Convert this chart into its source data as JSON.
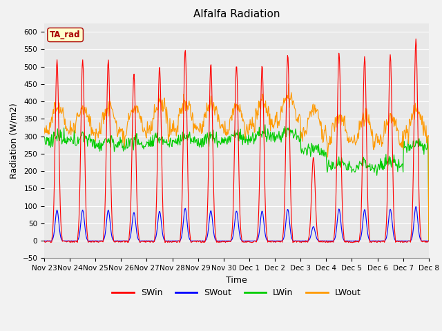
{
  "title": "Alfalfa Radiation",
  "xlabel": "Time",
  "ylabel": "Radiation (W/m2)",
  "ylim": [
    -50,
    625
  ],
  "n_days": 15,
  "colors": {
    "SWin": "#ff0000",
    "SWout": "#0000ff",
    "LWin": "#00cc00",
    "LWout": "#ff9900"
  },
  "legend_labels": [
    "SWin",
    "SWout",
    "LWin",
    "LWout"
  ],
  "tick_labels": [
    "Nov 23",
    "Nov 24",
    "Nov 25",
    "Nov 26",
    "Nov 27",
    "Nov 28",
    "Nov 29",
    "Nov 30",
    "Dec 1",
    "Dec 2",
    "Dec 3",
    "Dec 4",
    "Dec 5",
    "Dec 6",
    "Dec 7",
    "Dec 8"
  ],
  "annotation_text": "TA_rad",
  "annotation_color": "#aa0000",
  "annotation_bg": "#ffffcc",
  "plot_bg": "#e8e8e8",
  "fig_bg": "#f2f2f2",
  "title_fontsize": 11,
  "axis_fontsize": 9,
  "tick_fontsize": 7.5,
  "yticks": [
    -50,
    0,
    50,
    100,
    150,
    200,
    250,
    300,
    350,
    400,
    450,
    500,
    550,
    600
  ],
  "grid_color": "#ffffff",
  "linewidth": 0.8,
  "swin_peaks": [
    520,
    520,
    520,
    480,
    500,
    550,
    510,
    505,
    505,
    535,
    240,
    540,
    530,
    535,
    580
  ],
  "lwin_bases": [
    285,
    285,
    275,
    275,
    280,
    285,
    285,
    290,
    295,
    300,
    255,
    210,
    210,
    215,
    270
  ],
  "lwout_bases": [
    315,
    315,
    315,
    310,
    320,
    325,
    325,
    315,
    330,
    345,
    305,
    285,
    285,
    285,
    305
  ]
}
